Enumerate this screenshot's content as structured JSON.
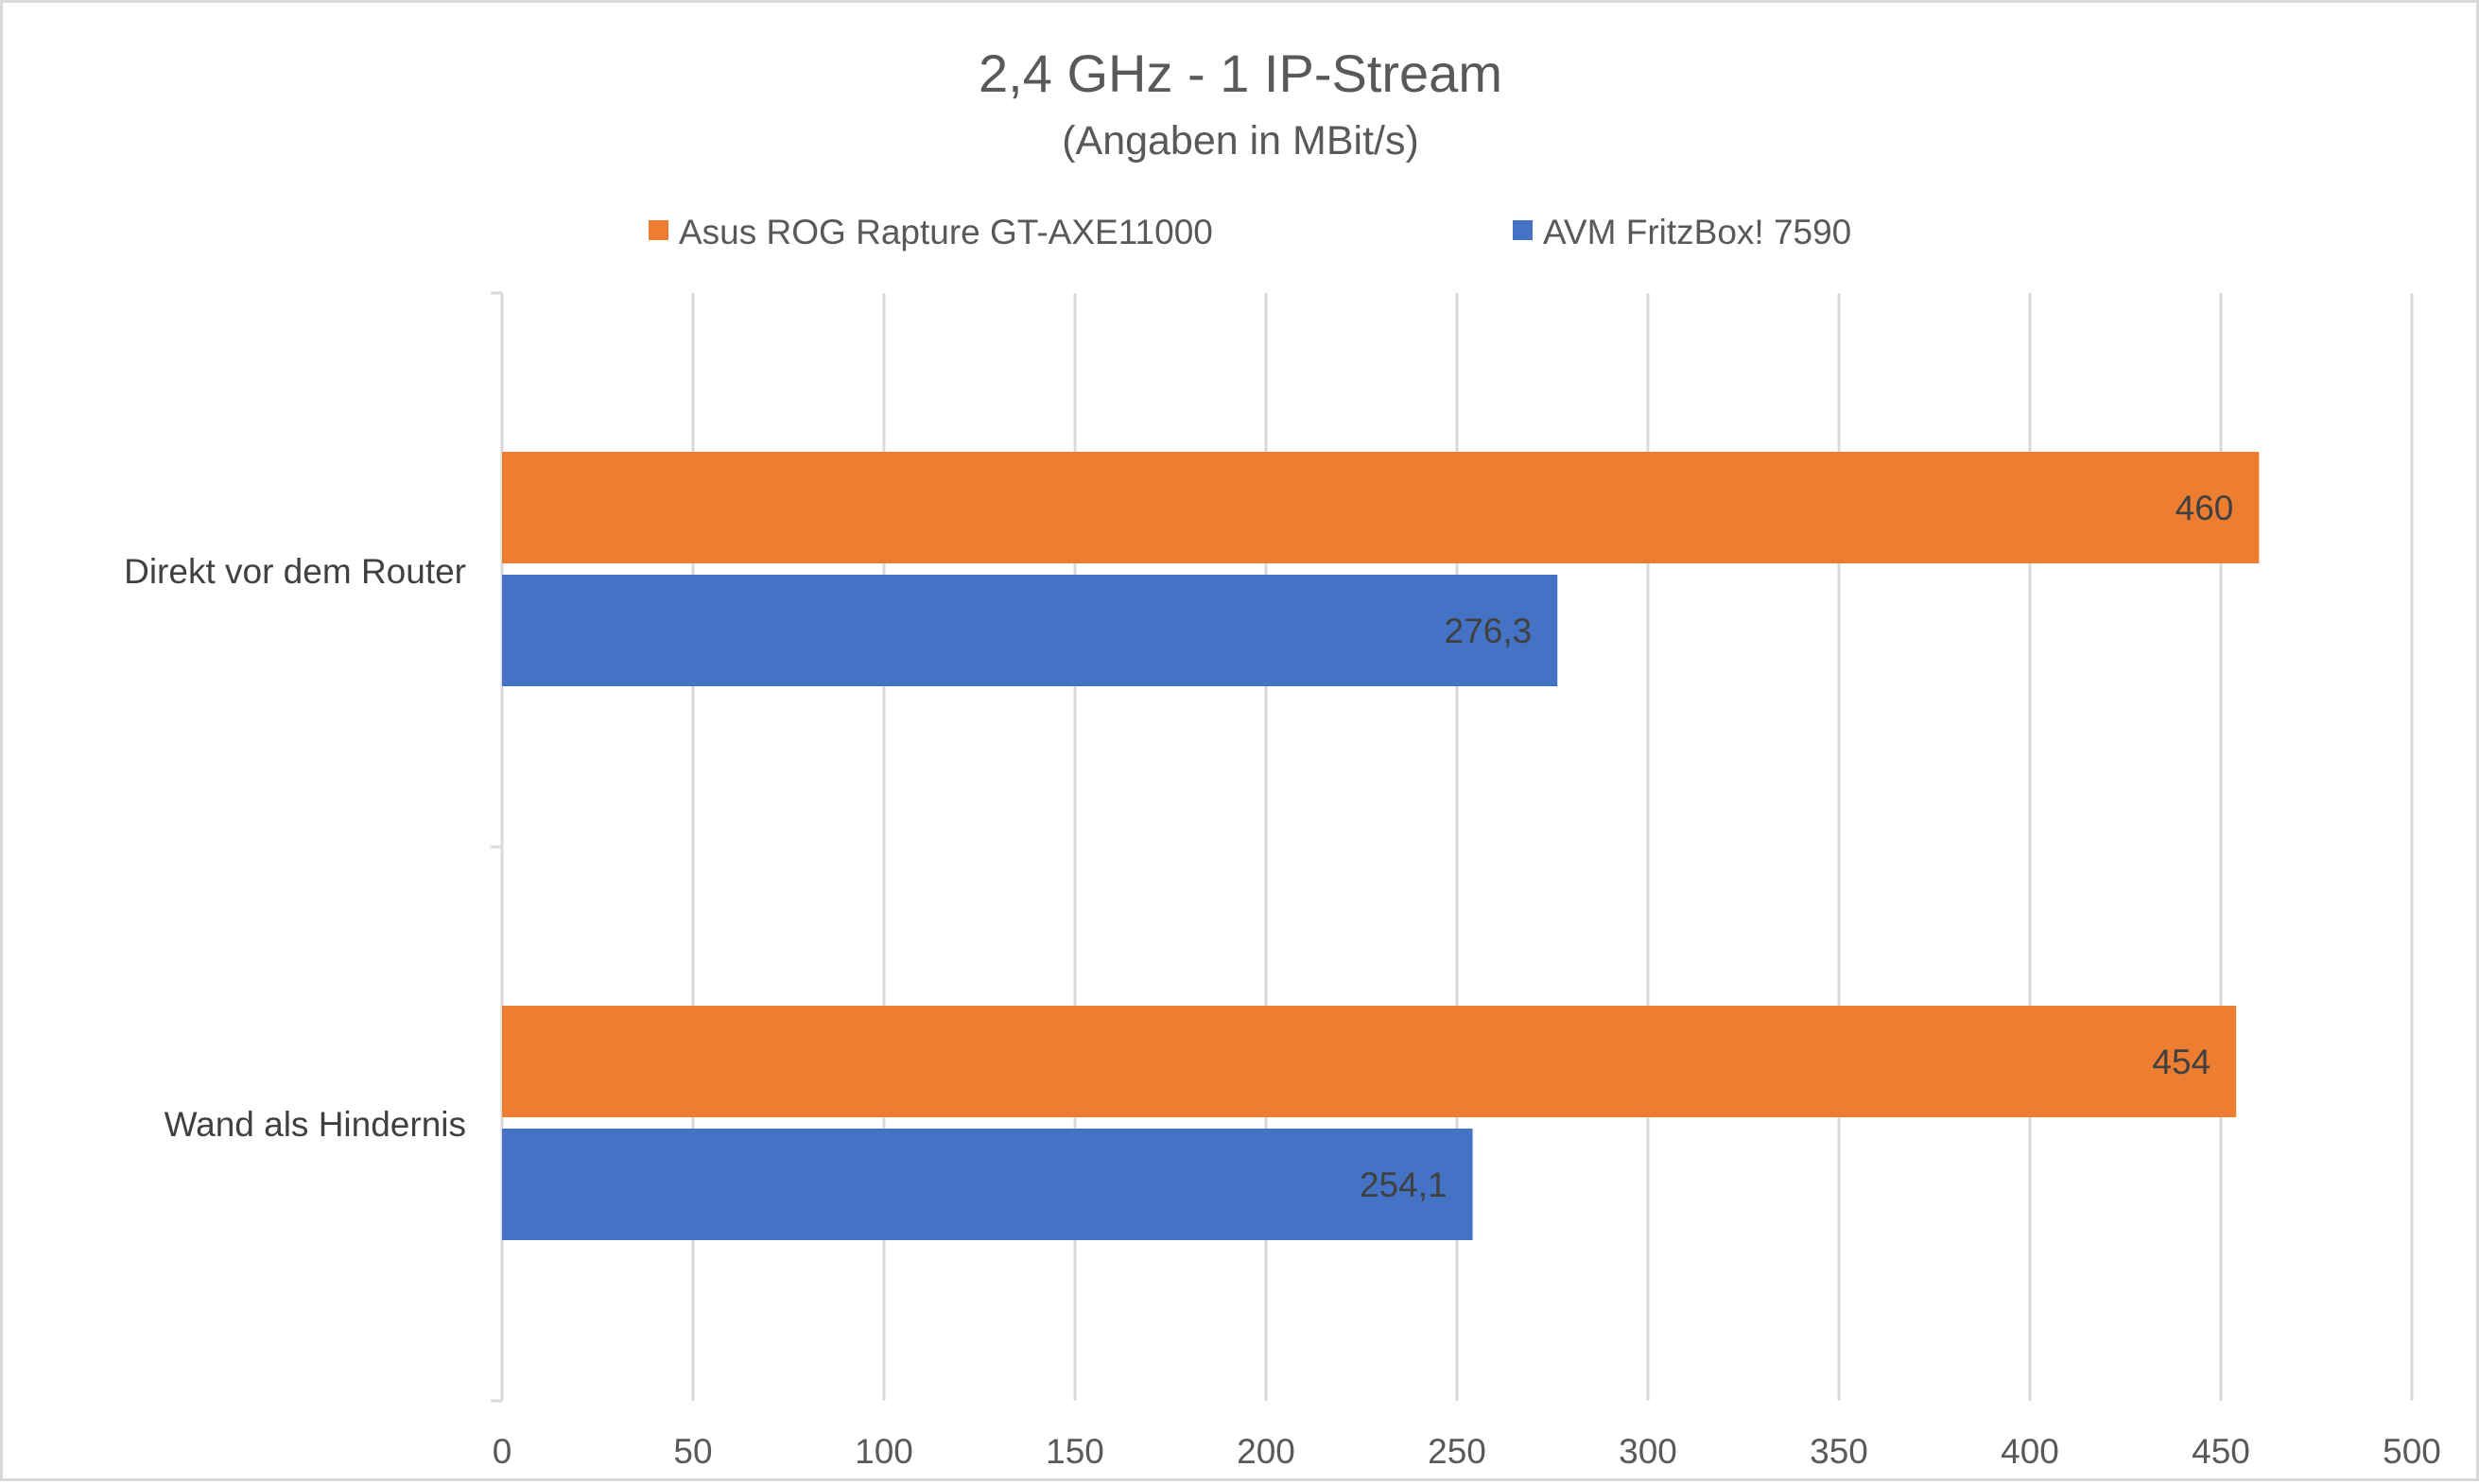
{
  "chart_data": {
    "type": "bar",
    "orientation": "horizontal",
    "title": "2,4 GHz - 1 IP-Stream",
    "subtitle": "(Angaben in MBit/s)",
    "xlabel": "",
    "ylabel": "",
    "xlim": [
      0,
      500
    ],
    "x_ticks": [
      0,
      50,
      100,
      150,
      200,
      250,
      300,
      350,
      400,
      450,
      500
    ],
    "grid": true,
    "legend_position": "top",
    "categories": [
      "Direkt vor dem Router",
      "Wand als Hindernis"
    ],
    "series": [
      {
        "name": "Asus ROG Rapture GT-AXE11000",
        "color": "#ED7D31",
        "values": [
          460,
          454
        ],
        "labels": [
          "460",
          "454"
        ]
      },
      {
        "name": "AVM FritzBox! 7590",
        "color": "#4472C4",
        "values": [
          276.3,
          254.1
        ],
        "labels": [
          "276,3",
          "254,1"
        ]
      }
    ]
  }
}
